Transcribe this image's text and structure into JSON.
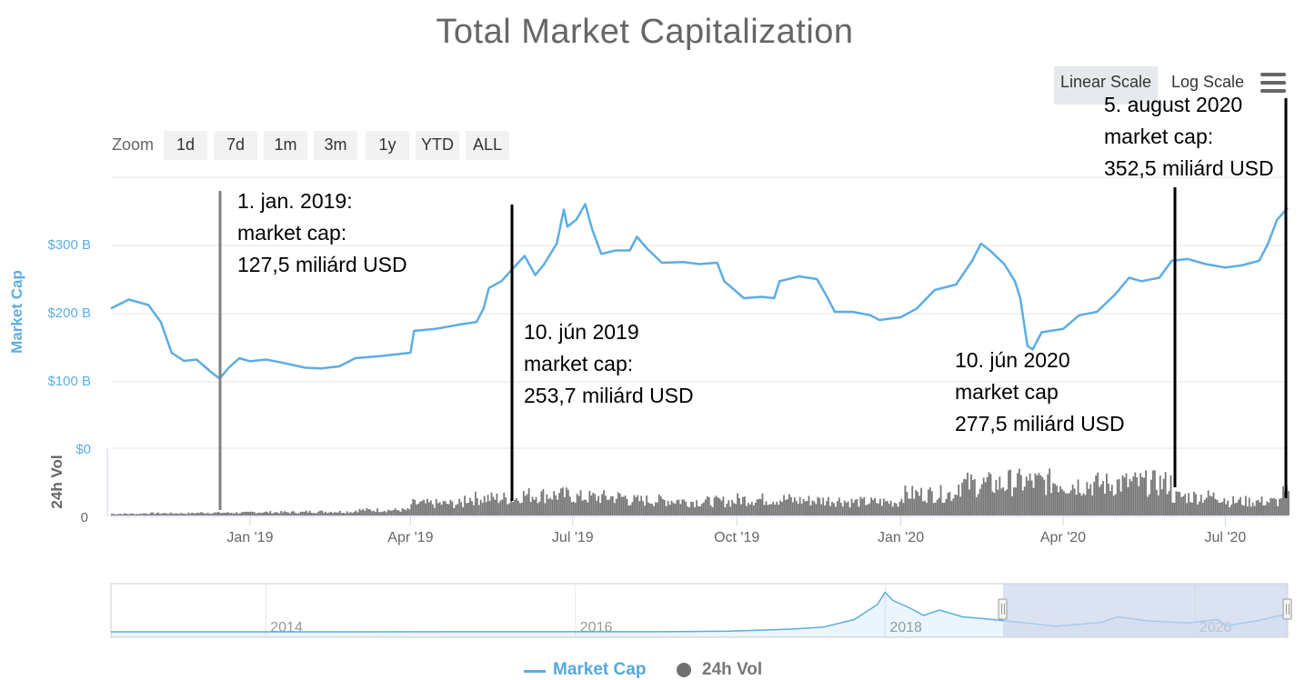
{
  "title": "Total Market Capitalization",
  "scale_toggle": {
    "linear": "Linear Scale",
    "log": "Log Scale",
    "active": "linear"
  },
  "zoom": {
    "label": "Zoom",
    "buttons": [
      "1d",
      "7d",
      "1m",
      "3m",
      "1y",
      "YTD",
      "ALL"
    ]
  },
  "legend": {
    "market_cap": "Market Cap",
    "volume": "24h Vol"
  },
  "colors": {
    "market_cap": "#5DADE2",
    "volume": "#777777",
    "navigator_mask": "#ccd6eb"
  },
  "annotations": [
    {
      "date": "2019-01-01",
      "lines": [
        "1. jan. 2019:",
        "market cap:",
        "127,5 miliárd USD"
      ]
    },
    {
      "date": "2019-06-10",
      "lines": [
        "10. jún 2019",
        "market cap:",
        "253,7 miliárd USD"
      ]
    },
    {
      "date": "2020-06-10",
      "lines": [
        "10. jún 2020",
        "market cap",
        "277,5 miliárd USD"
      ]
    },
    {
      "date": "2020-08-05",
      "lines": [
        "5. august 2020",
        "market cap:",
        "352,5 miliárd USD"
      ]
    }
  ],
  "chart_data": {
    "type": "line",
    "x_range": [
      "2018-10-15",
      "2020-08-05"
    ],
    "market_cap": {
      "axis_label": "Market Cap",
      "y_ticks": [
        "$0",
        "$100 B",
        "$200 B",
        "$300 B"
      ],
      "ylim": [
        0,
        400
      ],
      "unit": "billion USD",
      "points": [
        [
          "2018-10-15",
          205
        ],
        [
          "2018-10-25",
          218
        ],
        [
          "2018-11-05",
          210
        ],
        [
          "2018-11-12",
          185
        ],
        [
          "2018-11-18",
          140
        ],
        [
          "2018-11-25",
          128
        ],
        [
          "2018-12-02",
          130
        ],
        [
          "2018-12-10",
          112
        ],
        [
          "2018-12-15",
          102
        ],
        [
          "2018-12-20",
          118
        ],
        [
          "2018-12-26",
          132
        ],
        [
          "2019-01-01",
          127.5
        ],
        [
          "2019-01-10",
          130
        ],
        [
          "2019-01-20",
          125
        ],
        [
          "2019-02-01",
          118
        ],
        [
          "2019-02-10",
          117
        ],
        [
          "2019-02-20",
          120
        ],
        [
          "2019-03-01",
          132
        ],
        [
          "2019-03-15",
          135
        ],
        [
          "2019-04-01",
          140
        ],
        [
          "2019-04-03",
          172
        ],
        [
          "2019-04-15",
          175
        ],
        [
          "2019-04-30",
          182
        ],
        [
          "2019-05-08",
          185
        ],
        [
          "2019-05-12",
          205
        ],
        [
          "2019-05-15",
          235
        ],
        [
          "2019-05-22",
          245
        ],
        [
          "2019-05-30",
          268
        ],
        [
          "2019-06-04",
          282
        ],
        [
          "2019-06-10",
          253.7
        ],
        [
          "2019-06-15",
          270
        ],
        [
          "2019-06-22",
          300
        ],
        [
          "2019-06-26",
          350
        ],
        [
          "2019-06-28",
          325
        ],
        [
          "2019-07-03",
          335
        ],
        [
          "2019-07-08",
          358
        ],
        [
          "2019-07-12",
          320
        ],
        [
          "2019-07-17",
          285
        ],
        [
          "2019-07-25",
          290
        ],
        [
          "2019-08-02",
          290
        ],
        [
          "2019-08-06",
          310
        ],
        [
          "2019-08-12",
          292
        ],
        [
          "2019-08-20",
          272
        ],
        [
          "2019-09-01",
          273
        ],
        [
          "2019-09-10",
          270
        ],
        [
          "2019-09-20",
          272
        ],
        [
          "2019-09-24",
          245
        ],
        [
          "2019-10-05",
          220
        ],
        [
          "2019-10-15",
          222
        ],
        [
          "2019-10-22",
          220
        ],
        [
          "2019-10-25",
          245
        ],
        [
          "2019-11-05",
          252
        ],
        [
          "2019-11-15",
          248
        ],
        [
          "2019-11-20",
          225
        ],
        [
          "2019-11-25",
          200
        ],
        [
          "2019-12-05",
          200
        ],
        [
          "2019-12-15",
          195
        ],
        [
          "2019-12-20",
          188
        ],
        [
          "2020-01-01",
          192
        ],
        [
          "2020-01-10",
          205
        ],
        [
          "2020-01-20",
          232
        ],
        [
          "2020-02-01",
          240
        ],
        [
          "2020-02-10",
          275
        ],
        [
          "2020-02-15",
          300
        ],
        [
          "2020-02-20",
          290
        ],
        [
          "2020-02-28",
          270
        ],
        [
          "2020-03-05",
          245
        ],
        [
          "2020-03-08",
          220
        ],
        [
          "2020-03-12",
          150
        ],
        [
          "2020-03-15",
          145
        ],
        [
          "2020-03-20",
          170
        ],
        [
          "2020-04-01",
          175
        ],
        [
          "2020-04-10",
          195
        ],
        [
          "2020-04-20",
          200
        ],
        [
          "2020-04-30",
          225
        ],
        [
          "2020-05-08",
          250
        ],
        [
          "2020-05-15",
          245
        ],
        [
          "2020-05-25",
          250
        ],
        [
          "2020-06-01",
          275
        ],
        [
          "2020-06-10",
          277.5
        ],
        [
          "2020-06-20",
          270
        ],
        [
          "2020-07-01",
          265
        ],
        [
          "2020-07-10",
          268
        ],
        [
          "2020-07-20",
          275
        ],
        [
          "2020-07-25",
          300
        ],
        [
          "2020-07-30",
          335
        ],
        [
          "2020-08-05",
          352.5
        ]
      ]
    },
    "volume": {
      "axis_label": "24h Vol",
      "y_ticks": [
        "0"
      ],
      "monthly_level": [
        [
          "2018-10",
          3
        ],
        [
          "2018-11",
          4
        ],
        [
          "2018-12",
          5
        ],
        [
          "2019-01",
          6
        ],
        [
          "2019-02",
          7
        ],
        [
          "2019-03",
          10
        ],
        [
          "2019-04",
          22
        ],
        [
          "2019-05",
          32
        ],
        [
          "2019-06",
          38
        ],
        [
          "2019-07",
          34
        ],
        [
          "2019-08",
          28
        ],
        [
          "2019-09",
          26
        ],
        [
          "2019-10",
          30
        ],
        [
          "2019-11",
          28
        ],
        [
          "2019-12",
          25
        ],
        [
          "2020-01",
          40
        ],
        [
          "2020-02",
          58
        ],
        [
          "2020-03",
          62
        ],
        [
          "2020-04",
          58
        ],
        [
          "2020-05",
          60
        ],
        [
          "2020-06",
          35
        ],
        [
          "2020-07",
          26
        ],
        [
          "2020-08",
          40
        ]
      ]
    },
    "x_ticks": [
      "Jan '19",
      "Apr '19",
      "Jul '19",
      "Oct '19",
      "Jan '20",
      "Apr '20",
      "Jul '20"
    ],
    "navigator": {
      "x_ticks": [
        "2014",
        "2016",
        "2018",
        "2020"
      ],
      "selected_range": [
        "2018-10-15",
        "2020-08-05"
      ]
    }
  }
}
